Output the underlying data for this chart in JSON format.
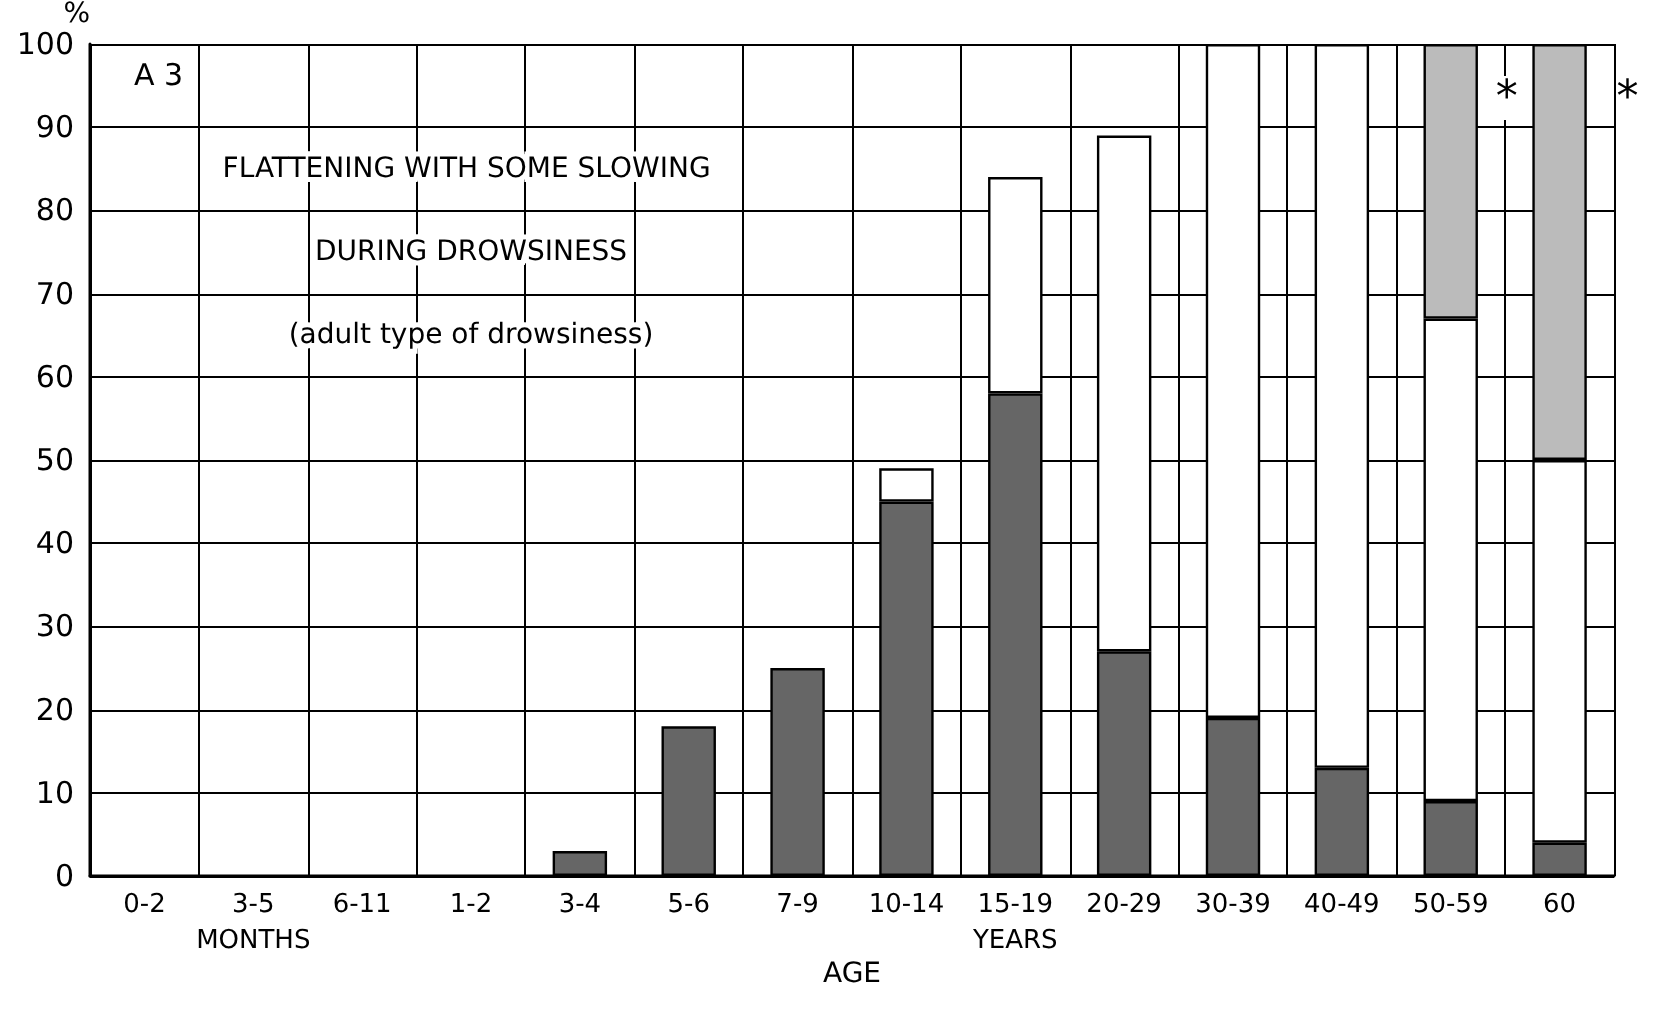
{
  "chart_data": {
    "type": "bar",
    "stacked": true,
    "title": "FLATTENING WITH SOME SLOWING DURING DROWSINESS",
    "subtitle": "(adult type of drowsiness)",
    "xlabel": "AGE",
    "ylabel": "%",
    "categories": [
      "0-2",
      "3-5",
      "6-11",
      "1-2",
      "3-4",
      "5-6",
      "7-9",
      "10-14",
      "15-19",
      "20-29",
      "30-39",
      "40-49",
      "50-59",
      "60"
    ],
    "series": [
      {
        "color": "#666666",
        "values": [
          0,
          0,
          0,
          0,
          3,
          18,
          25,
          45,
          58,
          27,
          19,
          13,
          9,
          4
        ]
      },
      {
        "color": "#ffffff",
        "values": [
          0,
          0,
          0,
          0,
          0,
          0,
          0,
          4,
          26,
          62,
          81,
          87,
          58,
          46
        ]
      },
      {
        "color": "#bbbbbb",
        "values": [
          0,
          0,
          0,
          0,
          0,
          0,
          0,
          0,
          0,
          0,
          0,
          0,
          33,
          50
        ]
      }
    ],
    "ylim": [
      0,
      100
    ],
    "yticks": [
      0,
      10,
      20,
      30,
      40,
      50,
      60,
      70,
      80,
      90,
      100
    ],
    "grid": true,
    "annotations": [
      "A 3",
      "MONTHS",
      "YEARS",
      "*",
      "*"
    ]
  }
}
